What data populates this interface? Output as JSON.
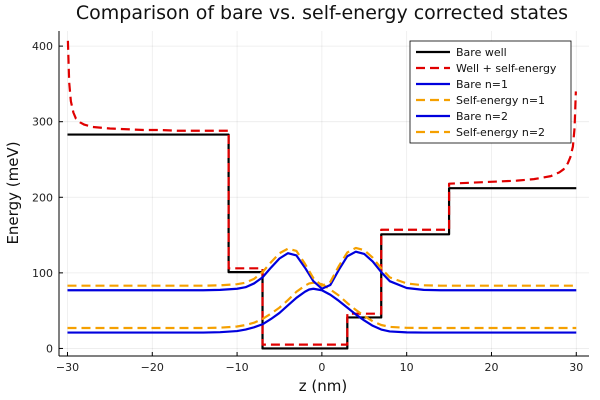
{
  "chart_data": {
    "type": "line",
    "title": "Comparison of bare vs. self-energy corrected states",
    "xlabel": "z (nm)",
    "ylabel": "Energy (meV)",
    "xlim": [
      -31,
      31.5
    ],
    "ylim": [
      -10,
      420
    ],
    "xticks": [
      -30,
      -20,
      -10,
      0,
      10,
      20,
      30
    ],
    "yticks": [
      0,
      100,
      200,
      300,
      400
    ],
    "grid": true,
    "legend_position": "top-right",
    "series": [
      {
        "name": "Bare well",
        "color": "#000000",
        "dash": "solid",
        "x": [
          -30,
          -11,
          -11,
          -7,
          -7,
          3,
          3,
          7,
          7,
          15,
          15,
          30
        ],
        "y": [
          283,
          283,
          101,
          101,
          0,
          0,
          41,
          41,
          151,
          151,
          212,
          212
        ]
      },
      {
        "name": "Well + self-energy",
        "color": "#e00000",
        "dash": "dashed",
        "x": [
          -29.95,
          -29.8,
          -29.6,
          -29.3,
          -29,
          -28.5,
          -28,
          -27,
          -26,
          -25,
          -23,
          -21,
          -19,
          -17,
          -15,
          -13,
          -11,
          -11,
          -7,
          -7,
          3,
          3,
          7,
          7,
          15,
          15,
          17,
          19,
          21,
          23,
          25,
          26,
          27,
          28,
          28.5,
          29,
          29.3,
          29.6,
          29.8,
          29.95
        ],
        "y": [
          407,
          352,
          327,
          312,
          304,
          299,
          296,
          293,
          292,
          291,
          290,
          289,
          289,
          288,
          288,
          288,
          288,
          106,
          106,
          5,
          5,
          46,
          46,
          157,
          157,
          218,
          219,
          220,
          221,
          222,
          224,
          226,
          228,
          233,
          237,
          245,
          253,
          267,
          292,
          340
        ]
      },
      {
        "name": "Bare n=1",
        "color": "#0000dd",
        "dash": "solid",
        "x": [
          -30,
          -14,
          -12,
          -10,
          -9,
          -8,
          -7,
          -6,
          -5,
          -4,
          -3,
          -2,
          -1.5,
          -1,
          0,
          1,
          2,
          3,
          4,
          5,
          6,
          7,
          8,
          10,
          12,
          14,
          30
        ],
        "y": [
          21,
          21,
          21.5,
          23,
          25,
          28,
          32,
          39,
          47,
          57,
          67,
          75,
          78,
          79,
          77,
          71,
          63,
          54,
          45,
          37,
          30,
          25,
          22.5,
          21.3,
          21,
          21,
          21
        ]
      },
      {
        "name": "Self-energy n=1",
        "color": "#f5a000",
        "dash": "dashed",
        "x": [
          -30,
          -14,
          -12,
          -10,
          -9,
          -8,
          -7,
          -6,
          -5,
          -4,
          -3,
          -2,
          -1.5,
          -1,
          0,
          1,
          2,
          3,
          4,
          5,
          6,
          7,
          8,
          10,
          12,
          14,
          30
        ],
        "y": [
          27,
          27,
          27.5,
          29,
          31,
          34,
          39,
          46,
          54,
          64,
          75,
          83,
          86,
          87,
          85,
          78,
          70,
          60,
          51,
          43,
          36,
          31,
          28.5,
          27.3,
          27,
          27,
          27
        ]
      },
      {
        "name": "Bare n=2",
        "color": "#0000dd",
        "dash": "solid",
        "x": [
          -30,
          -14,
          -12,
          -10,
          -9,
          -8,
          -7,
          -6,
          -5,
          -4,
          -3,
          -2,
          -1,
          0,
          1,
          2,
          3,
          4,
          5,
          6,
          7,
          8,
          10,
          12,
          14,
          30
        ],
        "y": [
          77,
          77,
          77.5,
          79,
          81,
          86,
          94,
          107,
          119,
          126,
          123,
          107,
          89,
          79,
          84,
          104,
          122,
          128,
          125,
          115,
          101,
          89,
          80,
          77.5,
          77,
          77
        ]
      },
      {
        "name": "Self-energy n=2",
        "color": "#f5a000",
        "dash": "dashed",
        "x": [
          -30,
          -14,
          -12,
          -10,
          -9,
          -8,
          -7,
          -6,
          -5,
          -4,
          -3,
          -2,
          -1,
          0,
          1,
          2,
          3,
          4,
          5,
          6,
          7,
          8,
          10,
          12,
          14,
          30
        ],
        "y": [
          83,
          83,
          83.5,
          85,
          87,
          92,
          101,
          114,
          126,
          132,
          129,
          112,
          93,
          83,
          88,
          109,
          127,
          133,
          130,
          120,
          106,
          94,
          86,
          83.5,
          83,
          83
        ]
      }
    ]
  }
}
